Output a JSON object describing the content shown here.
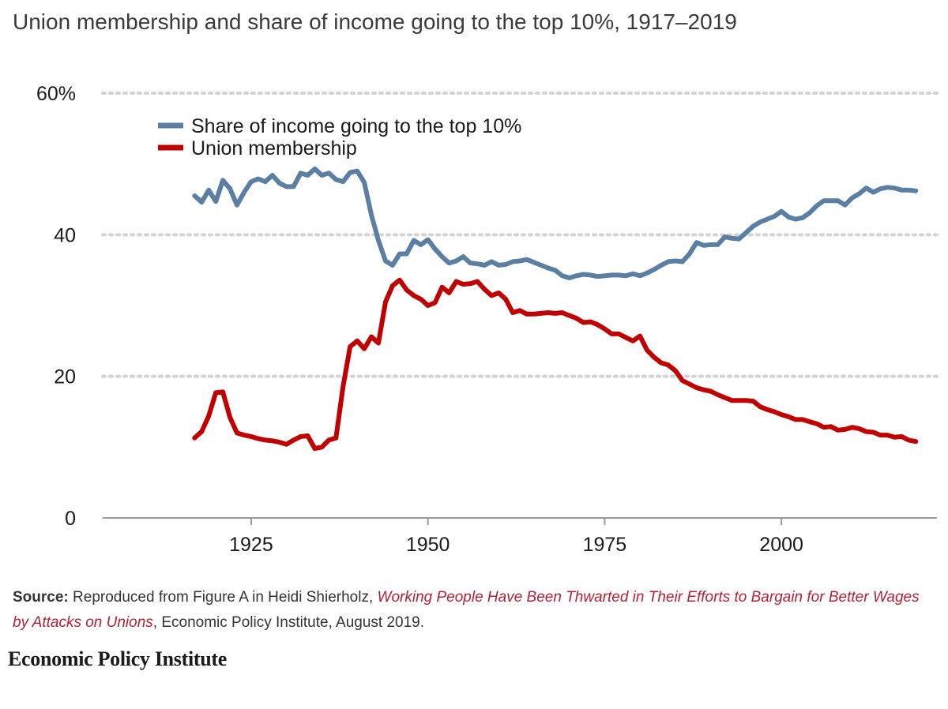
{
  "title": "Union membership and share of income going to the top 10%, 1917–2019",
  "source": {
    "label": "Source:",
    "text_before": "Reproduced from Figure A in Heidi Shierholz, ",
    "publication": "Working People Have Been Thwarted in Their Efforts to Bargain for Better Wages by Attacks on Unions",
    "text_after": ", Economic Policy Institute, August 2019."
  },
  "logo_text": "Economic Policy Institute",
  "chart_data": {
    "type": "line",
    "title": "Union membership and share of income going to the top 10%, 1917–2019",
    "xlabel": "",
    "ylabel": "",
    "xlim": [
      1904,
      2022
    ],
    "ylim": [
      0,
      60
    ],
    "x_ticks": [
      1925,
      1950,
      1975,
      2000
    ],
    "y_ticks": [
      {
        "value": 0,
        "label": "0"
      },
      {
        "value": 20,
        "label": "20"
      },
      {
        "value": 40,
        "label": "40"
      },
      {
        "value": 60,
        "label": "60%"
      }
    ],
    "grid": "horizontal-dotted",
    "legend_position": "top-left",
    "series": [
      {
        "name": "Share of income going to the top 10%",
        "color": "#5b7fa3",
        "points": [
          [
            1917,
            45.5
          ],
          [
            1918,
            44.6
          ],
          [
            1919,
            46.3
          ],
          [
            1920,
            44.7
          ],
          [
            1921,
            47.7
          ],
          [
            1922,
            46.5
          ],
          [
            1923,
            44.2
          ],
          [
            1924,
            46.0
          ],
          [
            1925,
            47.5
          ],
          [
            1926,
            47.9
          ],
          [
            1927,
            47.5
          ],
          [
            1928,
            48.4
          ],
          [
            1929,
            47.3
          ],
          [
            1930,
            46.8
          ],
          [
            1931,
            46.8
          ],
          [
            1932,
            48.7
          ],
          [
            1933,
            48.4
          ],
          [
            1934,
            49.3
          ],
          [
            1935,
            48.4
          ],
          [
            1936,
            48.7
          ],
          [
            1937,
            47.8
          ],
          [
            1938,
            47.5
          ],
          [
            1939,
            48.8
          ],
          [
            1940,
            49.0
          ],
          [
            1941,
            47.4
          ],
          [
            1942,
            42.8
          ],
          [
            1943,
            39.2
          ],
          [
            1944,
            36.3
          ],
          [
            1945,
            35.7
          ],
          [
            1946,
            37.3
          ],
          [
            1947,
            37.3
          ],
          [
            1948,
            39.2
          ],
          [
            1949,
            38.6
          ],
          [
            1950,
            39.3
          ],
          [
            1951,
            38.0
          ],
          [
            1952,
            36.9
          ],
          [
            1953,
            36.0
          ],
          [
            1954,
            36.3
          ],
          [
            1955,
            36.9
          ],
          [
            1956,
            36.0
          ],
          [
            1957,
            35.9
          ],
          [
            1958,
            35.7
          ],
          [
            1959,
            36.2
          ],
          [
            1960,
            35.7
          ],
          [
            1961,
            35.8
          ],
          [
            1962,
            36.2
          ],
          [
            1963,
            36.3
          ],
          [
            1964,
            36.5
          ],
          [
            1965,
            36.1
          ],
          [
            1966,
            35.7
          ],
          [
            1967,
            35.3
          ],
          [
            1968,
            35.0
          ],
          [
            1969,
            34.2
          ],
          [
            1970,
            33.9
          ],
          [
            1971,
            34.2
          ],
          [
            1972,
            34.4
          ],
          [
            1973,
            34.3
          ],
          [
            1974,
            34.1
          ],
          [
            1975,
            34.2
          ],
          [
            1976,
            34.3
          ],
          [
            1977,
            34.3
          ],
          [
            1978,
            34.2
          ],
          [
            1979,
            34.5
          ],
          [
            1980,
            34.2
          ],
          [
            1981,
            34.6
          ],
          [
            1982,
            35.1
          ],
          [
            1983,
            35.7
          ],
          [
            1984,
            36.2
          ],
          [
            1985,
            36.3
          ],
          [
            1986,
            36.2
          ],
          [
            1987,
            37.3
          ],
          [
            1988,
            38.9
          ],
          [
            1989,
            38.5
          ],
          [
            1990,
            38.6
          ],
          [
            1991,
            38.6
          ],
          [
            1992,
            39.7
          ],
          [
            1993,
            39.5
          ],
          [
            1994,
            39.4
          ],
          [
            1995,
            40.3
          ],
          [
            1996,
            41.2
          ],
          [
            1997,
            41.8
          ],
          [
            1998,
            42.2
          ],
          [
            1999,
            42.6
          ],
          [
            2000,
            43.3
          ],
          [
            2001,
            42.5
          ],
          [
            2002,
            42.2
          ],
          [
            2003,
            42.4
          ],
          [
            2004,
            43.1
          ],
          [
            2005,
            44.1
          ],
          [
            2006,
            44.8
          ],
          [
            2007,
            44.8
          ],
          [
            2008,
            44.8
          ],
          [
            2009,
            44.2
          ],
          [
            2010,
            45.2
          ],
          [
            2011,
            45.8
          ],
          [
            2012,
            46.6
          ],
          [
            2013,
            46.0
          ],
          [
            2014,
            46.5
          ],
          [
            2015,
            46.7
          ],
          [
            2016,
            46.6
          ],
          [
            2017,
            46.3
          ],
          [
            2018,
            46.3
          ],
          [
            2019,
            46.2
          ]
        ]
      },
      {
        "name": "Union membership",
        "color": "#c00000",
        "points": [
          [
            1917,
            11.3
          ],
          [
            1918,
            12.2
          ],
          [
            1919,
            14.4
          ],
          [
            1920,
            17.7
          ],
          [
            1921,
            17.8
          ],
          [
            1922,
            14.2
          ],
          [
            1923,
            12.0
          ],
          [
            1924,
            11.7
          ],
          [
            1925,
            11.5
          ],
          [
            1926,
            11.2
          ],
          [
            1927,
            11.0
          ],
          [
            1928,
            10.9
          ],
          [
            1929,
            10.7
          ],
          [
            1930,
            10.4
          ],
          [
            1931,
            11.0
          ],
          [
            1932,
            11.5
          ],
          [
            1933,
            11.6
          ],
          [
            1934,
            9.8
          ],
          [
            1935,
            10.0
          ],
          [
            1936,
            11.0
          ],
          [
            1937,
            11.3
          ],
          [
            1938,
            18.6
          ],
          [
            1939,
            24.2
          ],
          [
            1940,
            25.0
          ],
          [
            1941,
            23.9
          ],
          [
            1942,
            25.6
          ],
          [
            1943,
            24.7
          ],
          [
            1944,
            30.5
          ],
          [
            1945,
            32.8
          ],
          [
            1946,
            33.6
          ],
          [
            1947,
            32.2
          ],
          [
            1948,
            31.4
          ],
          [
            1949,
            30.9
          ],
          [
            1950,
            30.0
          ],
          [
            1951,
            30.4
          ],
          [
            1952,
            32.6
          ],
          [
            1953,
            31.8
          ],
          [
            1954,
            33.4
          ],
          [
            1955,
            33.0
          ],
          [
            1956,
            33.1
          ],
          [
            1957,
            33.4
          ],
          [
            1958,
            32.3
          ],
          [
            1959,
            31.4
          ],
          [
            1960,
            31.8
          ],
          [
            1961,
            30.9
          ],
          [
            1962,
            29.0
          ],
          [
            1963,
            29.3
          ],
          [
            1964,
            28.8
          ],
          [
            1965,
            28.8
          ],
          [
            1966,
            28.9
          ],
          [
            1967,
            29.0
          ],
          [
            1968,
            28.9
          ],
          [
            1969,
            29.0
          ],
          [
            1970,
            28.6
          ],
          [
            1971,
            28.2
          ],
          [
            1972,
            27.6
          ],
          [
            1973,
            27.7
          ],
          [
            1974,
            27.3
          ],
          [
            1975,
            26.7
          ],
          [
            1976,
            26.0
          ],
          [
            1977,
            26.0
          ],
          [
            1978,
            25.5
          ],
          [
            1979,
            25.0
          ],
          [
            1980,
            25.7
          ],
          [
            1981,
            23.7
          ],
          [
            1982,
            22.7
          ],
          [
            1983,
            21.9
          ],
          [
            1984,
            21.6
          ],
          [
            1985,
            20.8
          ],
          [
            1986,
            19.4
          ],
          [
            1987,
            18.9
          ],
          [
            1988,
            18.4
          ],
          [
            1989,
            18.1
          ],
          [
            1990,
            17.9
          ],
          [
            1991,
            17.4
          ],
          [
            1992,
            17.0
          ],
          [
            1993,
            16.6
          ],
          [
            1994,
            16.6
          ],
          [
            1995,
            16.6
          ],
          [
            1996,
            16.5
          ],
          [
            1997,
            15.7
          ],
          [
            1998,
            15.3
          ],
          [
            1999,
            15.0
          ],
          [
            2000,
            14.6
          ],
          [
            2001,
            14.3
          ],
          [
            2002,
            13.9
          ],
          [
            2003,
            13.9
          ],
          [
            2004,
            13.6
          ],
          [
            2005,
            13.3
          ],
          [
            2006,
            12.8
          ],
          [
            2007,
            12.9
          ],
          [
            2008,
            12.4
          ],
          [
            2009,
            12.5
          ],
          [
            2010,
            12.8
          ],
          [
            2011,
            12.6
          ],
          [
            2012,
            12.2
          ],
          [
            2013,
            12.1
          ],
          [
            2014,
            11.7
          ],
          [
            2015,
            11.7
          ],
          [
            2016,
            11.4
          ],
          [
            2017,
            11.5
          ],
          [
            2018,
            11.0
          ],
          [
            2019,
            10.8
          ]
        ]
      }
    ]
  }
}
